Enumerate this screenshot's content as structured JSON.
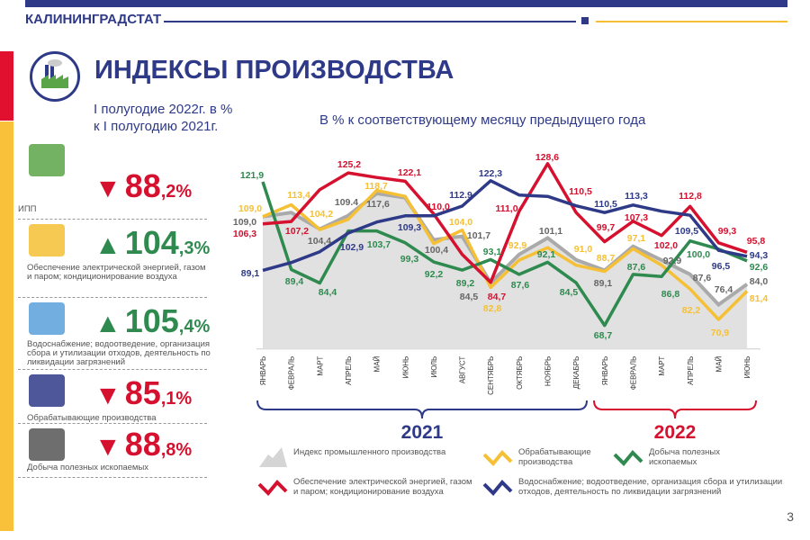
{
  "header": {
    "org": "КАЛИНИНГРАДСТАТ",
    "title": "ИНДЕКСЫ ПРОИЗВОДСТВА",
    "subtitle1": "I полугодие 2022г. в %",
    "subtitle2": "к I полугодию 2021г.",
    "page": "3"
  },
  "kpis": [
    {
      "dir": "down",
      "int": "88",
      "dec": ",2%",
      "label": "ИПП",
      "icon": "factory-icon"
    },
    {
      "dir": "up",
      "int": "104",
      "dec": ",3%",
      "label": "Обеспечение электрической энергией, газом и паром; кондиционирование воздуха",
      "icon": "lightbulb-gas-icon"
    },
    {
      "dir": "up",
      "int": "105",
      "dec": ",4%",
      "label": "Водоснабжение; водоотведение, организация сбора и утилизации отходов, деятельность по ликвидации загрязнений",
      "icon": "pipe-icon"
    },
    {
      "dir": "down",
      "int": "85",
      "dec": ",1%",
      "label": "Обрабатывающие производства",
      "icon": "hammer-gear-icon"
    },
    {
      "dir": "down",
      "int": "88",
      "dec": ",8%",
      "label": "Добыча полезных ископаемых",
      "icon": "shovel-diamond-icon"
    }
  ],
  "colors": {
    "up": "#2e8a4f",
    "down": "#d5112f",
    "ipp": "#c8c8c8",
    "manuf": "#f5c035",
    "mining": "#2e8a4f",
    "energy": "#d5112f",
    "water": "#2e3a87"
  },
  "chart_data": {
    "type": "line",
    "title": "В % к соответствующему месяцу предыдущего года",
    "categories": [
      "ЯНВАРЬ",
      "ФЕВРАЛЬ",
      "МАРТ",
      "АПРЕЛЬ",
      "МАЙ",
      "ИЮНЬ",
      "ИЮЛЬ",
      "АВГУСТ",
      "СЕНТЯБРЬ",
      "ОКТЯБРЬ",
      "НОЯБРЬ",
      "ДЕКАБРЬ",
      "ЯНВАРЬ",
      "ФЕВРАЛЬ",
      "МАРТ",
      "АПРЕЛЬ",
      "МАЙ",
      "ИЮНЬ"
    ],
    "year_groups": [
      {
        "label": "2021",
        "months": 12
      },
      {
        "label": "2022",
        "months": 6
      }
    ],
    "ylim": [
      60,
      130
    ],
    "series": [
      {
        "key": "ipp",
        "name": "Индекс промышленного производства",
        "style": "area",
        "values": [
          109.0,
          110.5,
          104.4,
          109.4,
          117.6,
          116.0,
          100.4,
          101.7,
          84.5,
          95.0,
          101.1,
          93.0,
          89.1,
          98.0,
          92.9,
          87.6,
          76.4,
          84.0
        ],
        "labels": [
          "109,0",
          null,
          "104,4",
          "109.4",
          "117,6",
          null,
          "100,4",
          "101,7",
          "84,5",
          null,
          "101,1",
          null,
          "89,1",
          null,
          "92,9",
          "87,6",
          "76,4",
          "84,0"
        ]
      },
      {
        "key": "manuf",
        "name": "Обрабатывающие производства",
        "values": [
          109.0,
          113.4,
          104.2,
          108.0,
          118.7,
          116.5,
          99.0,
          104.0,
          82.8,
          92.9,
          97.5,
          91.0,
          88.7,
          97.1,
          91.0,
          82.2,
          70.9,
          81.4
        ],
        "labels": [
          "109,0",
          "113,4",
          "104,2",
          null,
          "118,7",
          null,
          null,
          "104,0",
          "82,8",
          "92,9",
          null,
          "91,0",
          "88,7",
          "97,1",
          null,
          "82,2",
          "70,9",
          "81,4"
        ]
      },
      {
        "key": "mining",
        "name": "Добыча полезных ископаемых",
        "values": [
          121.9,
          89.4,
          84.4,
          103.7,
          103.7,
          99.3,
          92.2,
          89.2,
          93.1,
          87.6,
          92.1,
          84.5,
          68.7,
          87.6,
          86.8,
          100.0,
          97.0,
          92.6
        ],
        "labels": [
          "121,9",
          "89,4",
          "84,4",
          null,
          "103,7",
          "99,3",
          "92,2",
          "89,2",
          "93,1",
          "87,6",
          "92,1",
          "84,5",
          "68,7",
          "87,6",
          "86,8",
          "100,0",
          null,
          "92,6"
        ]
      },
      {
        "key": "energy",
        "name": "Обеспечение электрической энергией, газом и паром; кондиционирование воздуха",
        "values": [
          106.3,
          107.2,
          119.0,
          125.2,
          123.5,
          122.1,
          110.0,
          95.0,
          84.7,
          111.0,
          128.6,
          110.5,
          99.7,
          107.3,
          102.0,
          112.8,
          99.3,
          95.8
        ],
        "labels": [
          "106,3",
          "107,2",
          null,
          "125,2",
          null,
          "122,1",
          "110,0",
          null,
          "84,7",
          "111,0",
          "128,6",
          "110,5",
          "99,7",
          "107,3",
          "102,0",
          "112,8",
          "99,3",
          "95,8"
        ]
      },
      {
        "key": "water",
        "name": "Водоснабжение; водоотведение, организация сбора и утилизации отходов, деятельность по ликвидации загрязнений",
        "values": [
          89.1,
          92.0,
          96.0,
          102.9,
          107.0,
          109.3,
          109.3,
          112.9,
          122.3,
          117.0,
          116.5,
          113.0,
          110.5,
          113.3,
          111.0,
          109.5,
          96.5,
          94.3
        ],
        "labels": [
          "89,1",
          null,
          null,
          "102,9",
          null,
          "109,3",
          null,
          "112.9",
          "122,3",
          null,
          null,
          null,
          "110,5",
          "113,3",
          null,
          "109,5",
          "96,5",
          "94,3"
        ]
      }
    ]
  }
}
